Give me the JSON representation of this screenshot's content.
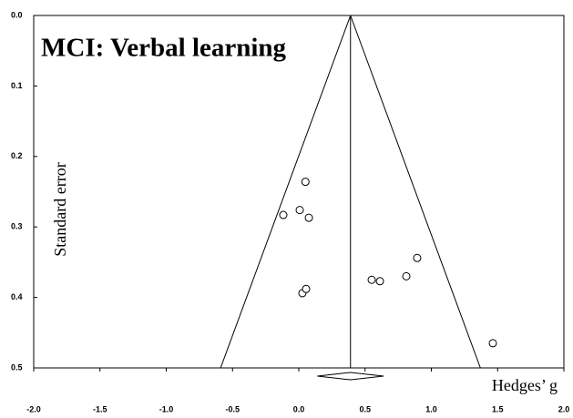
{
  "chart_data": {
    "type": "funnel",
    "title": "MCI: Verbal learning",
    "x_label": "Hedges’ g",
    "y_label": "Standard error",
    "x": [
      0.05,
      0.007,
      -0.117,
      0.076,
      0.893,
      0.811,
      0.55,
      0.612,
      0.027,
      0.055,
      1.464
    ],
    "values": [
      0.236,
      0.276,
      0.283,
      0.287,
      0.344,
      0.37,
      0.375,
      0.377,
      0.394,
      0.388,
      0.465
    ],
    "funnel": {
      "apex": [
        0.39,
        0
      ],
      "bottom": [
        -0.59,
        1.37
      ]
    },
    "pooled": {
      "estimate": 0.39,
      "ci": [
        0.14,
        0.64
      ]
    },
    "xlim": [
      -2,
      2
    ],
    "xticks": [
      {
        "value": -2,
        "label": "-2.0"
      },
      -1.5,
      {
        "value": -1,
        "label": "-1.0"
      },
      -0.5,
      {
        "value": 0,
        "label": "0.0"
      },
      0.5,
      {
        "value": 1,
        "label": "1.0"
      },
      1.5,
      {
        "value": 2,
        "label": "2.0"
      }
    ],
    "ylim": [
      0,
      0.5
    ],
    "yticks": [
      {
        "value": 0,
        "label": "0.0"
      },
      0.1,
      0.2,
      0.3,
      0.4,
      0.5
    ]
  }
}
